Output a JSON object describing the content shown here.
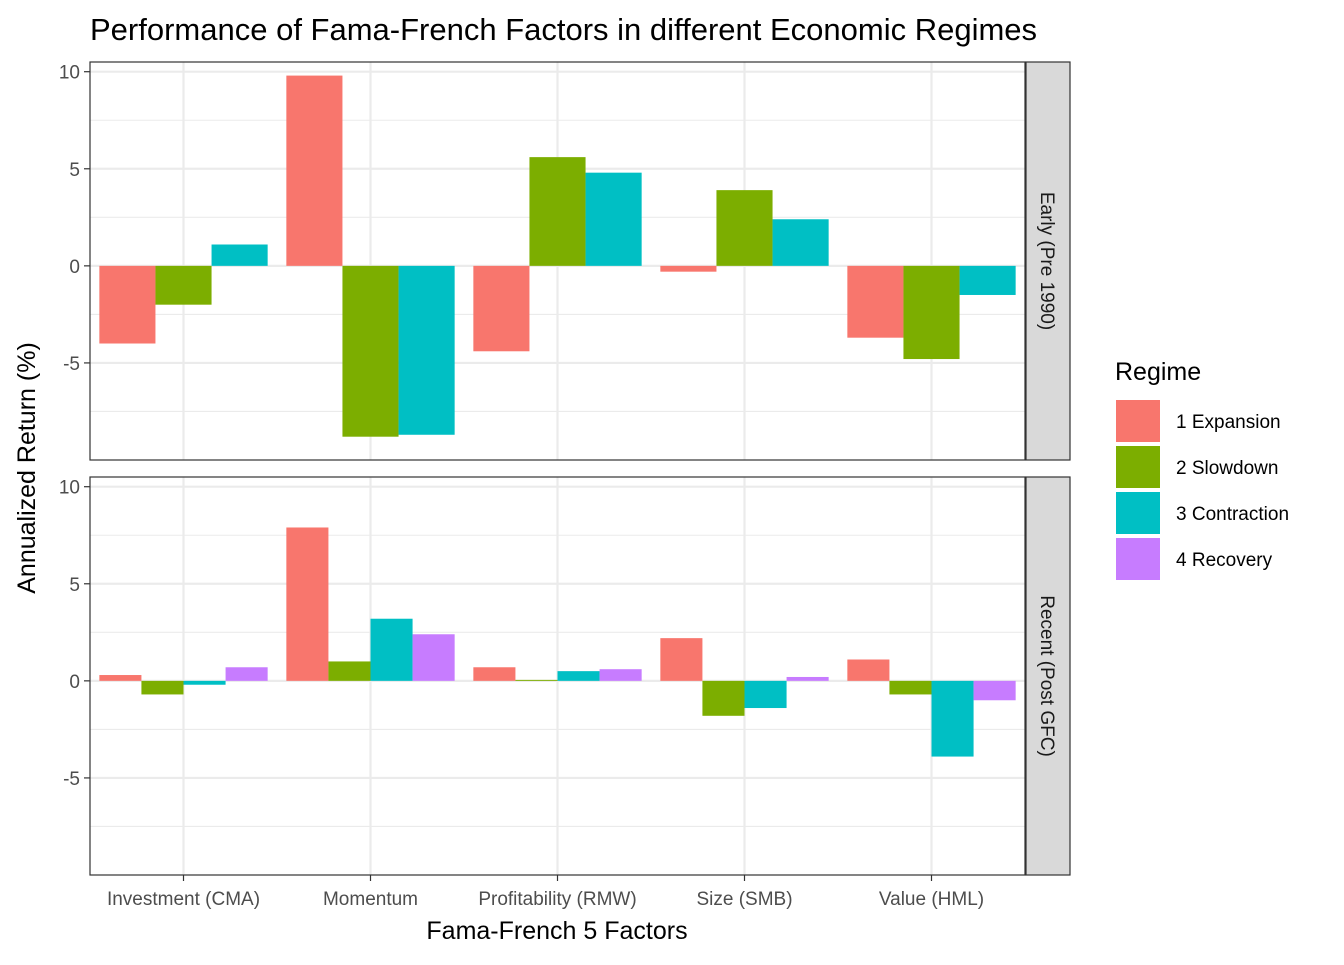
{
  "chart_data": {
    "type": "bar",
    "title": "Performance of Fama-French Factors in different Economic Regimes",
    "xlabel": "Fama-French 5 Factors",
    "ylabel": "Annualized Return (%)",
    "categories": [
      "Investment (CMA)",
      "Momentum",
      "Profitability (RMW)",
      "Size (SMB)",
      "Value (HML)"
    ],
    "ylim": [
      -10,
      10.5
    ],
    "yticks": [
      -5,
      0,
      5,
      10
    ],
    "grid": true,
    "legend": {
      "title": "Regime",
      "position": "right",
      "entries": [
        {
          "name": "1 Expansion",
          "color": "#F8766D"
        },
        {
          "name": "2 Slowdown",
          "color": "#7CAE00"
        },
        {
          "name": "3 Contraction",
          "color": "#00BFC4"
        },
        {
          "name": "4 Recovery",
          "color": "#C77CFF"
        }
      ]
    },
    "panels": [
      {
        "strip": "Early (Pre 1990)",
        "series": [
          {
            "name": "1 Expansion",
            "values": [
              -4.0,
              9.8,
              -4.4,
              -0.3,
              -3.7
            ]
          },
          {
            "name": "2 Slowdown",
            "values": [
              -2.0,
              -8.8,
              5.6,
              3.9,
              -4.8
            ]
          },
          {
            "name": "3 Contraction",
            "values": [
              1.1,
              -8.7,
              4.8,
              2.4,
              -1.5
            ]
          }
        ]
      },
      {
        "strip": "Recent (Post GFC)",
        "series": [
          {
            "name": "1 Expansion",
            "values": [
              0.3,
              7.9,
              0.7,
              2.2,
              1.1
            ]
          },
          {
            "name": "2 Slowdown",
            "values": [
              -0.7,
              1.0,
              0.05,
              -1.8,
              -0.7
            ]
          },
          {
            "name": "3 Contraction",
            "values": [
              -0.2,
              3.2,
              0.5,
              -1.4,
              -3.9
            ]
          },
          {
            "name": "4 Recovery",
            "values": [
              0.7,
              2.4,
              0.6,
              0.2,
              -1.0
            ]
          }
        ]
      }
    ]
  }
}
